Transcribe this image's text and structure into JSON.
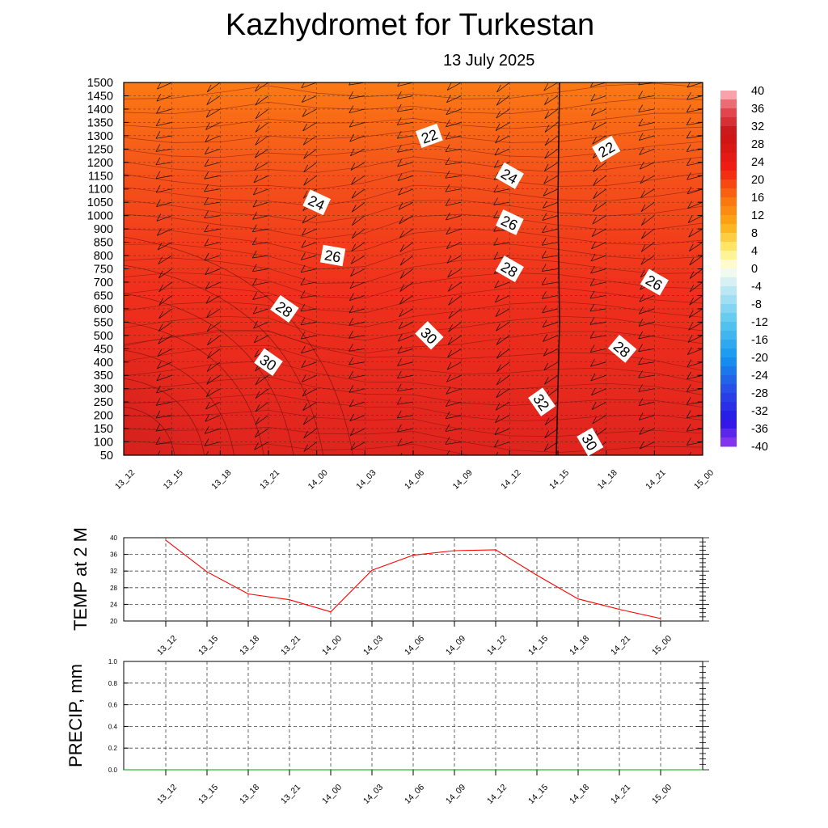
{
  "title": "Kazhydromet  for Turkestan",
  "subtitle": "13 July 2025",
  "time_labels": [
    "13_12",
    "13_15",
    "13_18",
    "13_21",
    "14_00",
    "14_03",
    "14_06",
    "14_09",
    "14_12",
    "14_15",
    "14_18",
    "14_21",
    "15_00"
  ],
  "chart_data": [
    {
      "type": "heatmap",
      "title": "",
      "y_ticks": [
        50,
        100,
        150,
        200,
        250,
        300,
        350,
        400,
        450,
        500,
        550,
        600,
        650,
        700,
        750,
        800,
        850,
        900,
        1000,
        1050,
        1100,
        1150,
        1200,
        1250,
        1300,
        1350,
        1400,
        1450,
        1500
      ],
      "x_ticks": [
        "13_12",
        "13_15",
        "13_18",
        "13_21",
        "14_00",
        "14_03",
        "14_06",
        "14_09",
        "14_12",
        "14_15",
        "14_18",
        "14_21",
        "15_00"
      ],
      "colorbar": {
        "labels": [
          "40",
          "36",
          "32",
          "28",
          "24",
          "20",
          "16",
          "12",
          "8",
          "4",
          "0",
          "-4",
          "-8",
          "-12",
          "-16",
          "-20",
          "-24",
          "-28",
          "-32",
          "-36",
          "-40"
        ]
      },
      "contour_labels": [
        {
          "text": "22",
          "x": "14_07",
          "y": 1300
        },
        {
          "text": "22",
          "x": "14_18",
          "y": 1250
        },
        {
          "text": "24",
          "x": "14_00",
          "y": 1050
        },
        {
          "text": "24",
          "x": "14_12",
          "y": 1150
        },
        {
          "text": "26",
          "x": "14_01",
          "y": 800
        },
        {
          "text": "26",
          "x": "14_12",
          "y": 950
        },
        {
          "text": "26",
          "x": "14_21",
          "y": 700
        },
        {
          "text": "28",
          "x": "13_22",
          "y": 600
        },
        {
          "text": "28",
          "x": "14_12",
          "y": 750
        },
        {
          "text": "28",
          "x": "14_19",
          "y": 450
        },
        {
          "text": "30",
          "x": "13_21",
          "y": 400
        },
        {
          "text": "30",
          "x": "14_07",
          "y": 500
        },
        {
          "text": "30",
          "x": "14_17",
          "y": 100
        },
        {
          "text": "32",
          "x": "14_14",
          "y": 250
        }
      ]
    },
    {
      "type": "line",
      "ylabel": "TEMP at 2 M",
      "ylim": [
        20,
        40
      ],
      "y_ticks": [
        20,
        24,
        28,
        32,
        36,
        40
      ],
      "categories": [
        "13_12",
        "13_15",
        "13_18",
        "13_21",
        "14_00",
        "14_03",
        "14_06",
        "14_09",
        "14_12",
        "14_15",
        "14_18",
        "14_21",
        "15_00"
      ],
      "series": [
        {
          "values": [
            39.4,
            31.8,
            26.5,
            25.1,
            22.2,
            32.2,
            35.8,
            36.9,
            37.1,
            31.0,
            25.3,
            22.8,
            20.6
          ],
          "color": "#ff0000"
        }
      ]
    },
    {
      "type": "line",
      "ylabel": "PRECIP, mm",
      "ylim": [
        0.0,
        1.0
      ],
      "y_ticks": [
        "0.0",
        "0.2",
        "0.4",
        "0.6",
        "0.8",
        "1.0"
      ],
      "categories": [
        "13_12",
        "13_15",
        "13_18",
        "13_21",
        "14_00",
        "14_03",
        "14_06",
        "14_09",
        "14_12",
        "14_15",
        "14_18",
        "14_21",
        "15_00"
      ],
      "series": [
        {
          "values": [
            0,
            0,
            0,
            0,
            0,
            0,
            0,
            0,
            0,
            0,
            0,
            0,
            0
          ],
          "color": "#00aa00"
        }
      ]
    }
  ]
}
